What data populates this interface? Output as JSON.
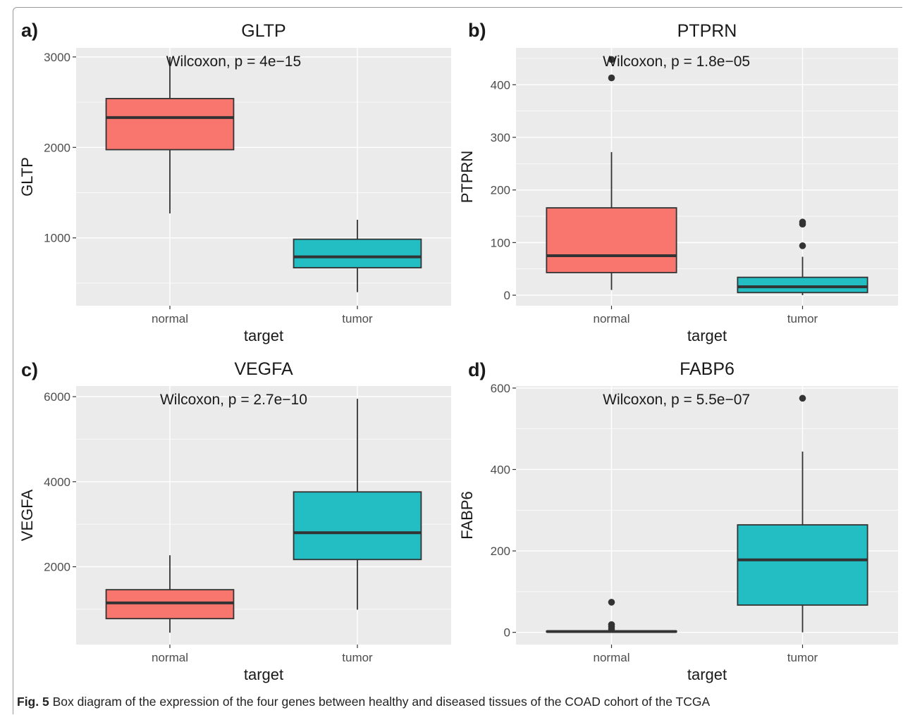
{
  "caption": {
    "label": "Fig. 5",
    "text": "Box diagram of the expression of the four genes between healthy and diseased tissues of the COAD cohort of the TCGA"
  },
  "colors": {
    "normal": "#f8766d",
    "tumor": "#22bec4",
    "panel_bg": "#ebebeb",
    "grid": "#ffffff",
    "line": "#333333"
  },
  "chart_data": [
    {
      "panel": "a)",
      "type": "box",
      "title": "GLTP",
      "xlabel": "target",
      "ylabel": "GLTP",
      "categories": [
        "normal",
        "tumor"
      ],
      "annotation": "Wilcoxon, p = 4e−15",
      "ylim": [
        250,
        3100
      ],
      "yticks": [
        1000,
        2000,
        3000
      ],
      "tick_labels": [
        "1000",
        "2000",
        "3000"
      ],
      "boxes": [
        {
          "group": "normal",
          "whisker_low": 1270,
          "q1": 1975,
          "median": 2330,
          "q3": 2540,
          "whisker_high": 3000,
          "outliers": []
        },
        {
          "group": "tumor",
          "whisker_low": 400,
          "q1": 670,
          "median": 790,
          "q3": 985,
          "whisker_high": 1200,
          "outliers": []
        }
      ]
    },
    {
      "panel": "b)",
      "type": "box",
      "title": "PTPRN",
      "xlabel": "target",
      "ylabel": "PTPRN",
      "categories": [
        "normal",
        "tumor"
      ],
      "annotation": "Wilcoxon, p = 1.8e−05",
      "ylim": [
        -20,
        470
      ],
      "yticks": [
        0,
        100,
        200,
        300,
        400
      ],
      "tick_labels": [
        "0",
        "100",
        "200",
        "300",
        "400"
      ],
      "boxes": [
        {
          "group": "normal",
          "whisker_low": 10,
          "q1": 43,
          "median": 75,
          "q3": 166,
          "whisker_high": 272,
          "outliers": [
            413,
            448
          ]
        },
        {
          "group": "tumor",
          "whisker_low": 0,
          "q1": 5,
          "median": 16,
          "q3": 34,
          "whisker_high": 73,
          "outliers": [
            94,
            135,
            139
          ]
        }
      ]
    },
    {
      "panel": "c)",
      "type": "box",
      "title": "VEGFA",
      "xlabel": "target",
      "ylabel": "VEGFA",
      "categories": [
        "normal",
        "tumor"
      ],
      "annotation": "Wilcoxon, p = 2.7e−10",
      "ylim": [
        170,
        6250
      ],
      "yticks": [
        2000,
        4000,
        6000
      ],
      "tick_labels": [
        "2000",
        "4000",
        "6000"
      ],
      "boxes": [
        {
          "group": "normal",
          "whisker_low": 450,
          "q1": 780,
          "median": 1150,
          "q3": 1460,
          "whisker_high": 2270,
          "outliers": []
        },
        {
          "group": "tumor",
          "whisker_low": 990,
          "q1": 2170,
          "median": 2800,
          "q3": 3760,
          "whisker_high": 5950,
          "outliers": []
        }
      ]
    },
    {
      "panel": "d)",
      "type": "box",
      "title": "FABP6",
      "xlabel": "target",
      "ylabel": "FABP6",
      "categories": [
        "normal",
        "tumor"
      ],
      "annotation": "Wilcoxon, p = 5.5e−07",
      "ylim": [
        -30,
        605
      ],
      "yticks": [
        0,
        200,
        400,
        600
      ],
      "tick_labels": [
        "0",
        "200",
        "400",
        "600"
      ],
      "boxes": [
        {
          "group": "normal",
          "whisker_low": 0,
          "q1": 1,
          "median": 2,
          "q3": 3,
          "whisker_high": 4,
          "outliers": [
            8,
            14,
            19,
            74
          ]
        },
        {
          "group": "tumor",
          "whisker_low": 0,
          "q1": 67,
          "median": 178,
          "q3": 264,
          "whisker_high": 444,
          "outliers": [
            575
          ]
        }
      ]
    }
  ]
}
